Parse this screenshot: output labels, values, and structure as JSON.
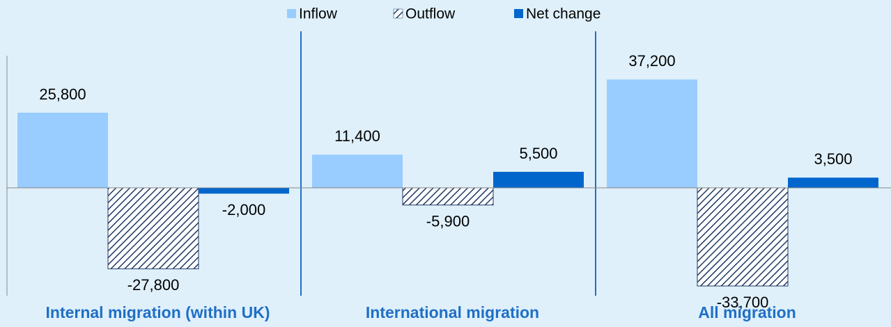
{
  "chart_data": {
    "type": "bar",
    "categories": [
      "Internal migration (within UK)",
      "International migration",
      "All migration"
    ],
    "series": [
      {
        "name": "Inflow",
        "color": "#99ccff",
        "values": [
          25800,
          11400,
          37200
        ],
        "value_labels": [
          "25,800",
          "11,400",
          "37,200"
        ]
      },
      {
        "name": "Outflow",
        "color": "#1f3864",
        "pattern": "hatch",
        "values": [
          -27800,
          -5900,
          -33700
        ],
        "value_labels": [
          "-27,800",
          "-5,900",
          "-33,700"
        ]
      },
      {
        "name": "Net change",
        "color": "#0066cc",
        "values": [
          -2000,
          5500,
          3500
        ],
        "value_labels": [
          "-2,000",
          "5,500",
          "3,500"
        ]
      }
    ],
    "ylim": [
      -40000,
      50000
    ]
  }
}
